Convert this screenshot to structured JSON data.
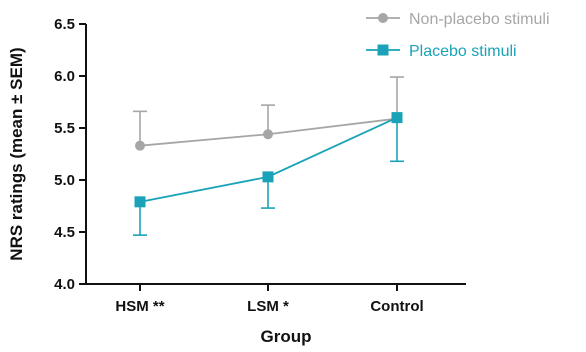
{
  "chart_data": {
    "type": "line",
    "title": "",
    "xlabel": "Group",
    "ylabel": "NRS ratings (mean ± SEM)",
    "categories": [
      "HSM **",
      "LSM *",
      "Control"
    ],
    "ylim": [
      4.0,
      6.5
    ],
    "yticks": [
      4.0,
      4.5,
      5.0,
      5.5,
      6.0,
      6.5
    ],
    "ytick_labels": [
      "4.0",
      "4.5",
      "5.0",
      "5.5",
      "6.0",
      "6.5"
    ],
    "grid": false,
    "legend_position": "top-right",
    "series": [
      {
        "name": "Non-placebo stimuli",
        "color": "#a6a6a6",
        "marker": "circle",
        "values": [
          5.33,
          5.44,
          5.59
        ],
        "sem": [
          0.33,
          0.28,
          0.4
        ],
        "error_direction": "up"
      },
      {
        "name": "Placebo stimuli",
        "color": "#1aa3b8",
        "marker": "square",
        "values": [
          4.79,
          5.03,
          5.6
        ],
        "sem": [
          0.32,
          0.3,
          0.42
        ],
        "error_direction": "down"
      }
    ]
  }
}
